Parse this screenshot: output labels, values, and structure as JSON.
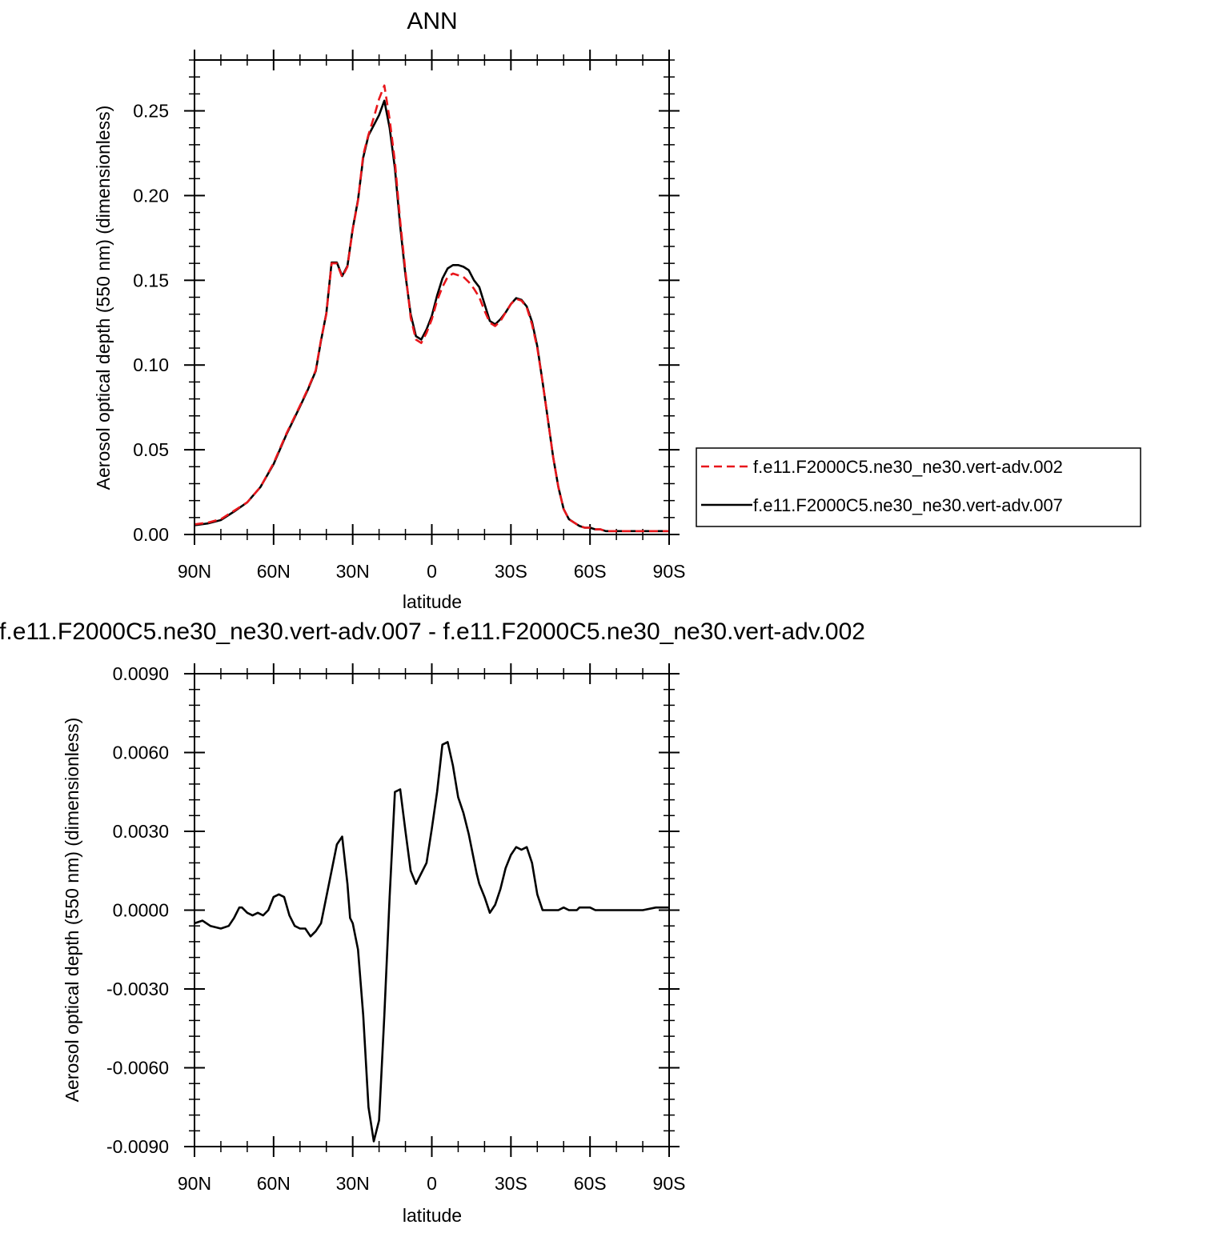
{
  "chart_data": [
    {
      "type": "line",
      "title": "ANN",
      "xlabel": "latitude",
      "ylabel": "Aerosol optical depth (550 nm) (dimensionless)",
      "xlim": [
        90,
        -90
      ],
      "ylim": [
        0,
        0.28
      ],
      "x_ticks": [
        90,
        60,
        30,
        0,
        -30,
        -60,
        -90
      ],
      "x_tick_labels": [
        "90N",
        "60N",
        "30N",
        "0",
        "30S",
        "60S",
        "90S"
      ],
      "y_ticks": [
        0,
        0.05,
        0.1,
        0.15,
        0.2,
        0.25
      ],
      "y_tick_labels": [
        "0.00",
        "0.05",
        "0.10",
        "0.15",
        "0.20",
        "0.25"
      ],
      "legend_position": "outside-right",
      "series": [
        {
          "name": "f.e11.F2000C5.ne30_ne30.vert-adv.002",
          "color": "#e8161b",
          "dash": "dashed",
          "x": [
            90,
            85,
            80,
            75,
            70,
            65,
            60,
            55,
            50,
            47,
            44,
            42,
            40,
            38,
            36,
            34,
            32,
            30,
            28,
            26,
            24,
            22,
            20,
            18,
            16,
            14,
            12,
            10,
            8,
            6,
            4,
            2,
            0,
            -2,
            -4,
            -6,
            -8,
            -10,
            -12,
            -14,
            -16,
            -18,
            -20,
            -22,
            -24,
            -26,
            -28,
            -30,
            -32,
            -34,
            -36,
            -38,
            -40,
            -42,
            -44,
            -46,
            -48,
            -50,
            -52,
            -54,
            -56,
            -58,
            -60,
            -62,
            -64,
            -66,
            -68,
            -70,
            -75,
            -80,
            -85,
            -90
          ],
          "y": [
            0.006,
            0.007,
            0.009,
            0.014,
            0.019,
            0.028,
            0.042,
            0.06,
            0.076,
            0.086,
            0.097,
            0.115,
            0.13,
            0.16,
            0.16,
            0.152,
            0.158,
            0.18,
            0.197,
            0.224,
            0.236,
            0.246,
            0.257,
            0.265,
            0.245,
            0.22,
            0.185,
            0.155,
            0.128,
            0.115,
            0.113,
            0.119,
            0.127,
            0.138,
            0.146,
            0.152,
            0.154,
            0.153,
            0.152,
            0.149,
            0.145,
            0.14,
            0.132,
            0.125,
            0.123,
            0.126,
            0.131,
            0.136,
            0.139,
            0.138,
            0.134,
            0.124,
            0.11,
            0.09,
            0.068,
            0.046,
            0.028,
            0.015,
            0.009,
            0.007,
            0.005,
            0.004,
            0.004,
            0.003,
            0.003,
            0.002,
            0.002,
            0.002,
            0.002,
            0.002,
            0.002,
            0.002
          ]
        },
        {
          "name": "f.e11.F2000C5.ne30_ne30.vert-adv.007",
          "color": "#000000",
          "dash": "solid",
          "x": [
            90,
            85,
            80,
            75,
            70,
            65,
            60,
            55,
            50,
            47,
            44,
            42,
            40,
            38,
            36,
            34,
            32,
            30,
            28,
            26,
            24,
            22,
            20,
            18,
            16,
            14,
            12,
            10,
            8,
            6,
            4,
            2,
            0,
            -2,
            -4,
            -6,
            -8,
            -10,
            -12,
            -14,
            -16,
            -18,
            -20,
            -22,
            -24,
            -26,
            -28,
            -30,
            -32,
            -34,
            -36,
            -38,
            -40,
            -42,
            -44,
            -46,
            -48,
            -50,
            -52,
            -54,
            -56,
            -58,
            -60,
            -62,
            -64,
            -66,
            -68,
            -70,
            -75,
            -80,
            -85,
            -90
          ],
          "y": [
            0.0055,
            0.0065,
            0.0085,
            0.0135,
            0.019,
            0.028,
            0.0415,
            0.0595,
            0.0755,
            0.0855,
            0.0965,
            0.1145,
            0.1305,
            0.1605,
            0.1605,
            0.1525,
            0.1585,
            0.1805,
            0.1975,
            0.2225,
            0.2355,
            0.2415,
            0.2475,
            0.256,
            0.24,
            0.216,
            0.182,
            0.153,
            0.13,
            0.117,
            0.115,
            0.121,
            0.129,
            0.141,
            0.151,
            0.157,
            0.159,
            0.159,
            0.158,
            0.156,
            0.15,
            0.146,
            0.136,
            0.126,
            0.124,
            0.127,
            0.131,
            0.136,
            0.1395,
            0.1385,
            0.1345,
            0.1255,
            0.111,
            0.09,
            0.068,
            0.046,
            0.028,
            0.015,
            0.009,
            0.007,
            0.005,
            0.004,
            0.004,
            0.003,
            0.003,
            0.002,
            0.002,
            0.002,
            0.002,
            0.002,
            0.002,
            0.002
          ]
        }
      ]
    },
    {
      "type": "line",
      "title": "f.e11.F2000C5.ne30_ne30.vert-adv.007 - f.e11.F2000C5.ne30_ne30.vert-adv.002",
      "xlabel": "latitude",
      "ylabel": "Aerosol optical depth (550 nm) (dimensionless)",
      "xlim": [
        90,
        -90
      ],
      "ylim": [
        -0.009,
        0.009
      ],
      "x_ticks": [
        90,
        60,
        30,
        0,
        -30,
        -60,
        -90
      ],
      "x_tick_labels": [
        "90N",
        "60N",
        "30N",
        "0",
        "30S",
        "60S",
        "90S"
      ],
      "y_ticks": [
        -0.009,
        -0.006,
        -0.003,
        0,
        0.003,
        0.006,
        0.009
      ],
      "y_tick_labels": [
        "-0.0090",
        "-0.0060",
        "-0.0030",
        "0.0000",
        "0.0030",
        "0.0060",
        "0.0090"
      ],
      "series": [
        {
          "color": "#000000",
          "dash": "solid",
          "x": [
            90,
            87,
            84,
            80,
            77,
            75,
            73,
            72,
            70,
            68,
            66,
            64,
            62,
            60,
            58,
            56,
            54,
            52,
            50,
            48,
            46,
            44,
            42,
            40,
            38,
            36,
            34,
            32,
            31,
            30,
            28,
            26,
            24,
            22,
            20,
            18,
            16,
            14,
            12,
            10,
            8,
            6,
            4,
            2,
            0,
            -2,
            -4,
            -6,
            -8,
            -10,
            -12,
            -14,
            -16,
            -17,
            -18,
            -20,
            -22,
            -24,
            -26,
            -28,
            -30,
            -32,
            -34,
            -36,
            -38,
            -40,
            -42,
            -44,
            -46,
            -48,
            -50,
            -52,
            -54,
            -55,
            -56,
            -58,
            -60,
            -62,
            -65,
            -68,
            -70,
            -73,
            -75,
            -80,
            -85,
            -90
          ],
          "y": [
            -0.0005,
            -0.0004,
            -0.0006,
            -0.0007,
            -0.0006,
            -0.0003,
            0.0001,
            0.0001,
            -0.0001,
            -0.0002,
            -0.0001,
            -0.0002,
            0.0,
            0.0005,
            0.0006,
            0.0005,
            -0.0002,
            -0.0006,
            -0.0007,
            -0.0007,
            -0.001,
            -0.0008,
            -0.0005,
            0.0005,
            0.0015,
            0.0025,
            0.0028,
            0.001,
            -0.0003,
            -0.0005,
            -0.0015,
            -0.004,
            -0.0075,
            -0.0088,
            -0.008,
            -0.004,
            0.0005,
            0.0045,
            0.0046,
            0.003,
            0.0015,
            0.001,
            0.0014,
            0.0018,
            0.0031,
            0.0045,
            0.0063,
            0.0064,
            0.0055,
            0.0043,
            0.0037,
            0.0029,
            0.0019,
            0.0014,
            0.001,
            0.0005,
            -0.0001,
            0.0002,
            0.0008,
            0.0016,
            0.0021,
            0.0024,
            0.0023,
            0.0024,
            0.0018,
            0.0006,
            0.0,
            0.0,
            0.0,
            0.0,
            0.0001,
            0.0,
            0.0,
            0.0,
            0.0001,
            0.0001,
            0.0001,
            0.0,
            0.0,
            0.0,
            0.0,
            0.0,
            0.0,
            0.0,
            0.0001,
            0.0001
          ]
        }
      ]
    }
  ]
}
